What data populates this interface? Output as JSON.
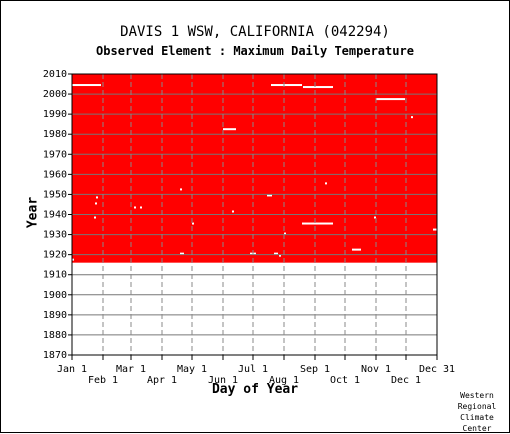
{
  "chart_data": {
    "type": "heatmap",
    "title": "DAVIS 1 WSW, CALIFORNIA   (042294)",
    "subtitle": "Observed Element : Maximum Daily Temperature",
    "xlabel": "Day of Year",
    "ylabel": "Year",
    "x_ticks_upper": [
      "Jan 1",
      "Mar 1",
      "May 1",
      "Jul 1",
      "Sep 1",
      "Nov 1",
      "Dec 31"
    ],
    "x_ticks_lower": [
      "Feb 1",
      "Apr 1",
      "Jun 1",
      "Aug 1",
      "Oct 1",
      "Dec 1"
    ],
    "y_ticks": [
      1870,
      1880,
      1890,
      1900,
      1910,
      1920,
      1930,
      1940,
      1950,
      1960,
      1970,
      1980,
      1990,
      2000,
      2010
    ],
    "xlim": [
      1,
      366
    ],
    "ylim": [
      1870,
      2010
    ],
    "observed_color": "#ff0000",
    "observed_period": {
      "start_year": 1916,
      "end_year": 2010
    },
    "missing_segments": [
      {
        "year": 2004,
        "start_day": 1,
        "end_day": 30
      },
      {
        "year": 2004,
        "start_day": 200,
        "end_day": 231
      },
      {
        "year": 2003,
        "start_day": 232,
        "end_day": 262
      },
      {
        "year": 1997,
        "start_day": 305,
        "end_day": 334
      },
      {
        "year": 1988,
        "start_day": 340,
        "end_day": 342
      },
      {
        "year": 1982,
        "start_day": 152,
        "end_day": 165
      },
      {
        "year": 1955,
        "start_day": 254,
        "end_day": 256
      },
      {
        "year": 1952,
        "start_day": 109,
        "end_day": 111
      },
      {
        "year": 1949,
        "start_day": 196,
        "end_day": 201
      },
      {
        "year": 1948,
        "start_day": 25,
        "end_day": 27
      },
      {
        "year": 1945,
        "start_day": 24,
        "end_day": 26
      },
      {
        "year": 1943,
        "start_day": 63,
        "end_day": 65
      },
      {
        "year": 1943,
        "start_day": 69,
        "end_day": 71
      },
      {
        "year": 1941,
        "start_day": 161,
        "end_day": 163
      },
      {
        "year": 1938,
        "start_day": 23,
        "end_day": 25
      },
      {
        "year": 1938,
        "start_day": 303,
        "end_day": 305
      },
      {
        "year": 1935,
        "start_day": 121,
        "end_day": 123
      },
      {
        "year": 1935,
        "start_day": 231,
        "end_day": 262
      },
      {
        "year": 1932,
        "start_day": 362,
        "end_day": 366
      },
      {
        "year": 1930,
        "start_day": 213,
        "end_day": 215
      },
      {
        "year": 1922,
        "start_day": 281,
        "end_day": 290
      },
      {
        "year": 1920,
        "start_day": 109,
        "end_day": 113
      },
      {
        "year": 1920,
        "start_day": 179,
        "end_day": 185
      },
      {
        "year": 1920,
        "start_day": 203,
        "end_day": 207
      },
      {
        "year": 1919,
        "start_day": 208,
        "end_day": 210
      },
      {
        "year": 1917,
        "start_day": 1,
        "end_day": 2
      }
    ],
    "grid": true
  },
  "credit": [
    "Western",
    "Regional",
    "Climate",
    "Center"
  ]
}
